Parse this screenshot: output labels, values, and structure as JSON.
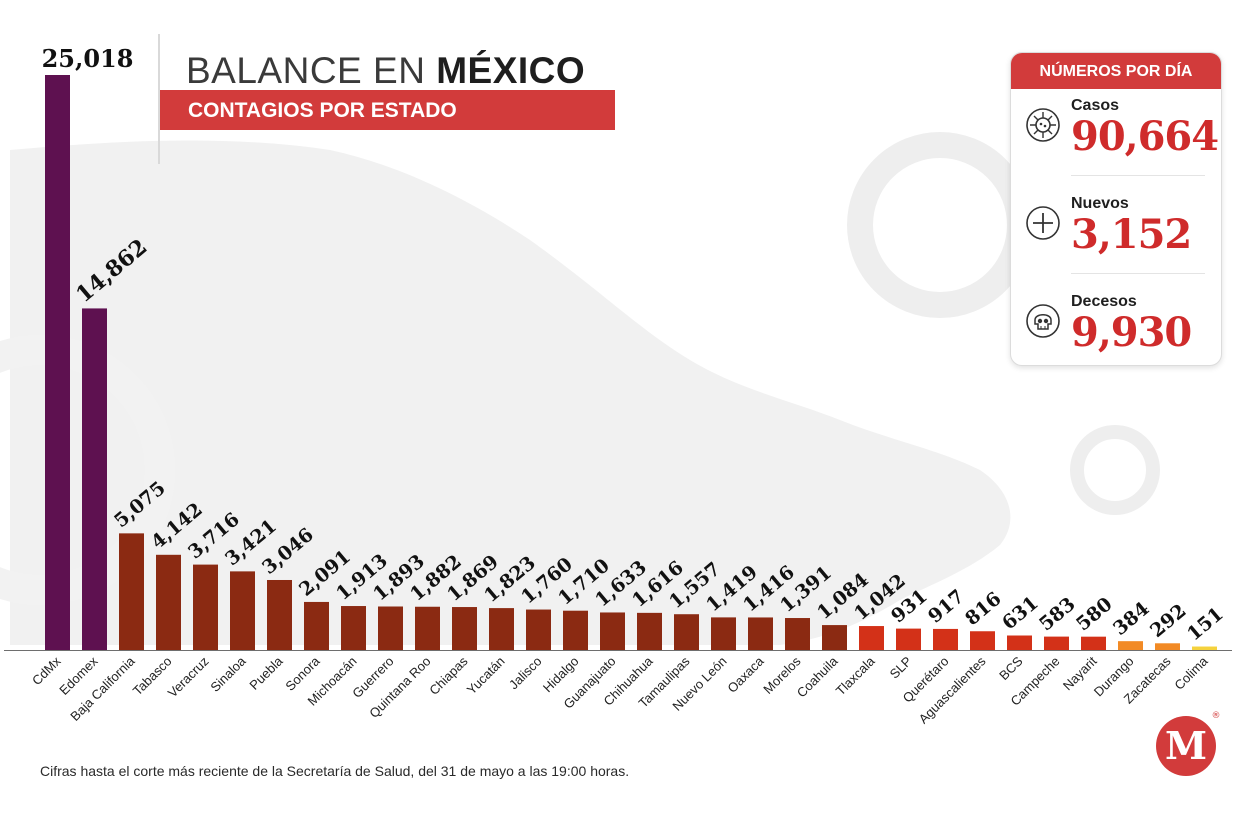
{
  "header": {
    "title_light": "BALANCE EN ",
    "title_bold": "MÉXICO",
    "subtitle": "CONTAGIOS POR ESTADO"
  },
  "panel": {
    "title": "NÚMEROS POR DÍA",
    "stats": [
      {
        "label": "Casos",
        "value": "90,664",
        "icon": "virus-icon"
      },
      {
        "label": "Nuevos",
        "value": "3,152",
        "icon": "plus-circle-icon"
      },
      {
        "label": "Decesos",
        "value": "9,930",
        "icon": "skull-icon"
      }
    ]
  },
  "footnote": "Cifras hasta el corte más reciente de la Secretaría de Salud, del 31 de mayo a las 19:00 horas.",
  "logo": {
    "letter": "M",
    "mark": "®"
  },
  "colors": {
    "accent": "#d23b3b",
    "purple": "#5e1150",
    "brown": "#8b2a12",
    "red": "#d33118",
    "orange": "#f28a25",
    "yellow": "#f5d23d"
  },
  "chart_data": {
    "type": "bar",
    "title": "CONTAGIOS POR ESTADO",
    "categories": [
      "CdMx",
      "Edomex",
      "Baja California",
      "Tabasco",
      "Veracruz",
      "Sinaloa",
      "Puebla",
      "Sonora",
      "Michoacán",
      "Guerrero",
      "Quintana Roo",
      "Chiapas",
      "Yucatán",
      "Jalisco",
      "Hidalgo",
      "Guanajuato",
      "Chihuahua",
      "Tamaulipas",
      "Nuevo León",
      "Oaxaca",
      "Morelos",
      "Coahuila",
      "Tlaxcala",
      "SLP",
      "Querétaro",
      "Aguascalientes",
      "BCS",
      "Campeche",
      "Nayarit",
      "Durango",
      "Zacatecas",
      "Colima"
    ],
    "values": [
      25018,
      14862,
      5075,
      4142,
      3716,
      3421,
      3046,
      2091,
      1913,
      1893,
      1882,
      1869,
      1823,
      1760,
      1710,
      1633,
      1616,
      1557,
      1419,
      1416,
      1391,
      1084,
      1042,
      931,
      917,
      816,
      631,
      583,
      580,
      384,
      292,
      151
    ],
    "value_labels": [
      "25,018",
      "14,862",
      "5,075",
      "4,142",
      "3,716",
      "3,421",
      "3,046",
      "2,091",
      "1,913",
      "1,893",
      "1,882",
      "1,869",
      "1,823",
      "1,760",
      "1,710",
      "1,633",
      "1,616",
      "1,557",
      "1,419",
      "1,416",
      "1,391",
      "1,084",
      "1,042",
      "931",
      "917",
      "816",
      "631",
      "583",
      "580",
      "384",
      "292",
      "151"
    ],
    "bar_colors": [
      "#5e1150",
      "#5e1150",
      "#8b2a12",
      "#8b2a12",
      "#8b2a12",
      "#8b2a12",
      "#8b2a12",
      "#8b2a12",
      "#8b2a12",
      "#8b2a12",
      "#8b2a12",
      "#8b2a12",
      "#8b2a12",
      "#8b2a12",
      "#8b2a12",
      "#8b2a12",
      "#8b2a12",
      "#8b2a12",
      "#8b2a12",
      "#8b2a12",
      "#8b2a12",
      "#8b2a12",
      "#d33118",
      "#d33118",
      "#d33118",
      "#d33118",
      "#d33118",
      "#d33118",
      "#d33118",
      "#f28a25",
      "#f28a25",
      "#f5d23d"
    ],
    "ylim": [
      0,
      25018
    ],
    "grid": false,
    "legend": "none"
  }
}
